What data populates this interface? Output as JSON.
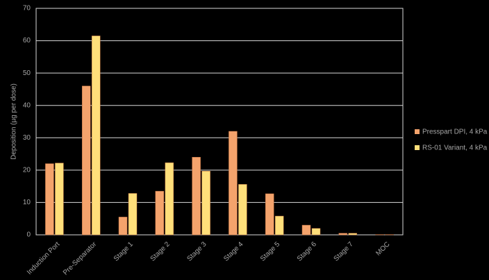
{
  "chart_data": {
    "type": "bar",
    "y_label": "Deposition (µg per dose)",
    "categories": [
      "Induction Port",
      "Pre-Separator",
      "Stage 1",
      "Stage 2",
      "Stage 3",
      "Stage 4",
      "Stage 5",
      "Stage 6",
      "Stage 7",
      "MOC"
    ],
    "series": [
      {
        "name": "Presspart DPI, 4 kPa",
        "color": "#f4a36c",
        "values": [
          22,
          46,
          5.5,
          13.5,
          24,
          32,
          12.7,
          3,
          0.5,
          0.1
        ]
      },
      {
        "name": "RS-01 Variant, 4 kPa",
        "color": "#ffdf7a",
        "values": [
          22.2,
          61.5,
          12.8,
          22.3,
          19.7,
          15.6,
          5.8,
          2,
          0.5,
          0.1
        ]
      }
    ],
    "ylim": [
      0,
      70
    ],
    "yticks": [
      0,
      10,
      20,
      30,
      40,
      50,
      60,
      70
    ],
    "grid": true
  }
}
